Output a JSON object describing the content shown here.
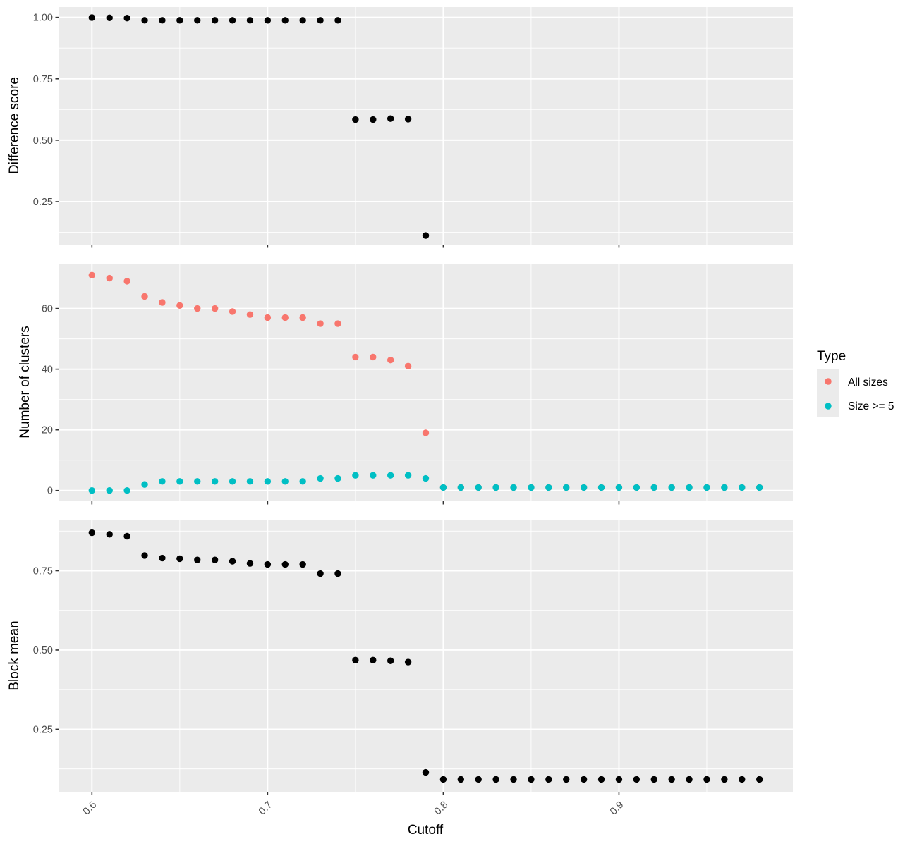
{
  "chart_data": [
    {
      "type": "scatter",
      "panel": "top",
      "ylabel": "Difference score",
      "xlim": [
        0.581,
        0.999
      ],
      "ylim": [
        0.075,
        1.042
      ],
      "x_ticks": [
        0.6,
        0.7,
        0.8,
        0.9
      ],
      "y_ticks": [
        "0.25",
        "0.50",
        "0.75",
        "1.00"
      ],
      "grid": true,
      "series": [
        {
          "color": "#000000",
          "points": [
            [
              0.6,
              0.999
            ],
            [
              0.61,
              0.998
            ],
            [
              0.62,
              0.997
            ],
            [
              0.63,
              0.988
            ],
            [
              0.64,
              0.988
            ],
            [
              0.65,
              0.988
            ],
            [
              0.66,
              0.988
            ],
            [
              0.67,
              0.988
            ],
            [
              0.68,
              0.988
            ],
            [
              0.69,
              0.988
            ],
            [
              0.7,
              0.988
            ],
            [
              0.71,
              0.988
            ],
            [
              0.72,
              0.988
            ],
            [
              0.73,
              0.988
            ],
            [
              0.74,
              0.988
            ],
            [
              0.75,
              0.584
            ],
            [
              0.76,
              0.584
            ],
            [
              0.77,
              0.588
            ],
            [
              0.78,
              0.586
            ],
            [
              0.79,
              0.112
            ]
          ]
        }
      ]
    },
    {
      "type": "scatter",
      "panel": "middle",
      "ylabel": "Number of clusters",
      "xlim": [
        0.581,
        0.999
      ],
      "ylim": [
        -3.55,
        74.55
      ],
      "x_ticks": [
        0.6,
        0.7,
        0.8,
        0.9
      ],
      "y_ticks": [
        "0",
        "20",
        "40",
        "60"
      ],
      "grid": true,
      "series": [
        {
          "name": "All sizes",
          "color": "#F8766D",
          "points": [
            [
              0.6,
              71
            ],
            [
              0.61,
              70
            ],
            [
              0.62,
              69
            ],
            [
              0.63,
              64
            ],
            [
              0.64,
              62
            ],
            [
              0.65,
              61
            ],
            [
              0.66,
              60
            ],
            [
              0.67,
              60
            ],
            [
              0.68,
              59
            ],
            [
              0.69,
              58
            ],
            [
              0.7,
              57
            ],
            [
              0.71,
              57
            ],
            [
              0.72,
              57
            ],
            [
              0.73,
              55
            ],
            [
              0.74,
              55
            ],
            [
              0.75,
              44
            ],
            [
              0.76,
              44
            ],
            [
              0.77,
              43
            ],
            [
              0.78,
              41
            ],
            [
              0.79,
              19
            ],
            [
              0.8,
              1
            ],
            [
              0.81,
              1
            ],
            [
              0.82,
              1
            ],
            [
              0.83,
              1
            ],
            [
              0.84,
              1
            ],
            [
              0.85,
              1
            ],
            [
              0.86,
              1
            ],
            [
              0.87,
              1
            ],
            [
              0.88,
              1
            ],
            [
              0.89,
              1
            ],
            [
              0.9,
              1
            ],
            [
              0.91,
              1
            ],
            [
              0.92,
              1
            ],
            [
              0.93,
              1
            ],
            [
              0.94,
              1
            ],
            [
              0.95,
              1
            ],
            [
              0.96,
              1
            ],
            [
              0.97,
              1
            ],
            [
              0.98,
              1
            ]
          ]
        },
        {
          "name": "Size >= 5",
          "color": "#00BFC4",
          "points": [
            [
              0.6,
              0
            ],
            [
              0.61,
              0
            ],
            [
              0.62,
              0
            ],
            [
              0.63,
              2
            ],
            [
              0.64,
              3
            ],
            [
              0.65,
              3
            ],
            [
              0.66,
              3
            ],
            [
              0.67,
              3
            ],
            [
              0.68,
              3
            ],
            [
              0.69,
              3
            ],
            [
              0.7,
              3
            ],
            [
              0.71,
              3
            ],
            [
              0.72,
              3
            ],
            [
              0.73,
              4
            ],
            [
              0.74,
              4
            ],
            [
              0.75,
              5
            ],
            [
              0.76,
              5
            ],
            [
              0.77,
              5
            ],
            [
              0.78,
              5
            ],
            [
              0.79,
              4
            ],
            [
              0.8,
              1
            ],
            [
              0.81,
              1
            ],
            [
              0.82,
              1
            ],
            [
              0.83,
              1
            ],
            [
              0.84,
              1
            ],
            [
              0.85,
              1
            ],
            [
              0.86,
              1
            ],
            [
              0.87,
              1
            ],
            [
              0.88,
              1
            ],
            [
              0.89,
              1
            ],
            [
              0.9,
              1
            ],
            [
              0.91,
              1
            ],
            [
              0.92,
              1
            ],
            [
              0.93,
              1
            ],
            [
              0.94,
              1
            ],
            [
              0.95,
              1
            ],
            [
              0.96,
              1
            ],
            [
              0.97,
              1
            ],
            [
              0.98,
              1
            ]
          ]
        }
      ]
    },
    {
      "type": "scatter",
      "panel": "bottom",
      "ylabel": "Block mean",
      "xlabel": "Cutoff",
      "xlim": [
        0.581,
        0.999
      ],
      "ylim": [
        0.053,
        0.909
      ],
      "x_ticks": [
        0.6,
        0.7,
        0.8,
        0.9
      ],
      "x_tick_labels": [
        "0.6",
        "0.7",
        "0.8",
        "0.9"
      ],
      "y_ticks": [
        "0.25",
        "0.50",
        "0.75"
      ],
      "grid": true,
      "series": [
        {
          "color": "#000000",
          "points": [
            [
              0.6,
              0.87
            ],
            [
              0.61,
              0.865
            ],
            [
              0.62,
              0.859
            ],
            [
              0.63,
              0.798
            ],
            [
              0.64,
              0.79
            ],
            [
              0.65,
              0.788
            ],
            [
              0.66,
              0.784
            ],
            [
              0.67,
              0.784
            ],
            [
              0.68,
              0.78
            ],
            [
              0.69,
              0.773
            ],
            [
              0.7,
              0.77
            ],
            [
              0.71,
              0.77
            ],
            [
              0.72,
              0.77
            ],
            [
              0.73,
              0.741
            ],
            [
              0.74,
              0.741
            ],
            [
              0.75,
              0.468
            ],
            [
              0.76,
              0.468
            ],
            [
              0.77,
              0.466
            ],
            [
              0.78,
              0.462
            ],
            [
              0.79,
              0.114
            ],
            [
              0.8,
              0.092
            ],
            [
              0.81,
              0.092
            ],
            [
              0.82,
              0.092
            ],
            [
              0.83,
              0.092
            ],
            [
              0.84,
              0.092
            ],
            [
              0.85,
              0.092
            ],
            [
              0.86,
              0.092
            ],
            [
              0.87,
              0.092
            ],
            [
              0.88,
              0.092
            ],
            [
              0.89,
              0.092
            ],
            [
              0.9,
              0.092
            ],
            [
              0.91,
              0.092
            ],
            [
              0.92,
              0.092
            ],
            [
              0.93,
              0.092
            ],
            [
              0.94,
              0.092
            ],
            [
              0.95,
              0.092
            ],
            [
              0.96,
              0.092
            ],
            [
              0.97,
              0.092
            ],
            [
              0.98,
              0.092
            ]
          ]
        }
      ]
    }
  ],
  "legend": {
    "title": "Type",
    "items": [
      {
        "label": "All sizes",
        "color": "#F8766D"
      },
      {
        "label": "Size >= 5",
        "color": "#00BFC4"
      }
    ]
  },
  "style": {
    "panel_background": "#EBEBEB",
    "grid_color": "#FFFFFF",
    "tick_color": "#333333"
  }
}
